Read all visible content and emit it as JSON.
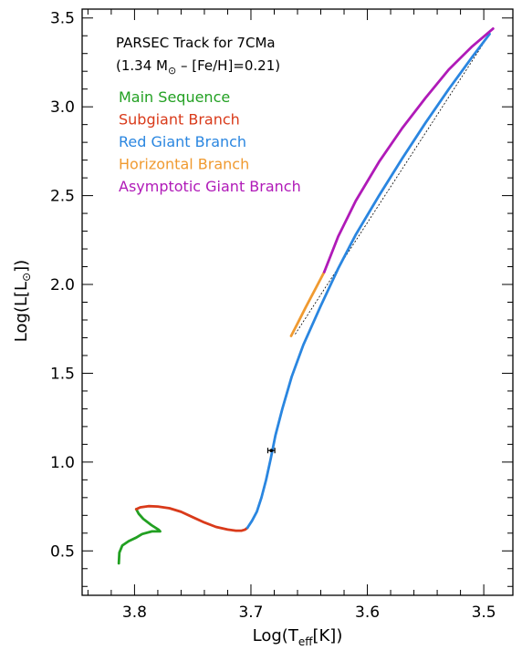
{
  "chart_data": {
    "type": "line",
    "xlabel_parts": {
      "base": "Log(T",
      "sub": "eff",
      "tail": "[K])"
    },
    "ylabel_parts": {
      "base": "Log(L[L",
      "sym": "⊙",
      "tail": "])"
    },
    "xlim": [
      3.845,
      3.475
    ],
    "ylim": [
      0.25,
      3.55
    ],
    "x_ticks": [
      3.8,
      3.7,
      3.6,
      3.5
    ],
    "x_tick_labels": [
      "3.8",
      "3.7",
      "3.6",
      "3.5"
    ],
    "y_ticks": [
      0.5,
      1.0,
      1.5,
      2.0,
      2.5,
      3.0,
      3.5
    ],
    "y_tick_labels": [
      "0.5",
      "1.0",
      "1.5",
      "2.0",
      "2.5",
      "3.0",
      "3.5"
    ],
    "annotation": {
      "line1": "PARSEC Track for 7CMa",
      "line2_a": "(1.34 M",
      "line2_sym": "⊙",
      "line2_b": " – [Fe/H]=0.21)"
    },
    "series": [
      {
        "name": "Main Sequence",
        "color": "#22a022",
        "x": [
          3.8135,
          3.813,
          3.8105,
          3.805,
          3.7985,
          3.7935,
          3.785,
          3.778,
          3.7795,
          3.7855,
          3.7925,
          3.7965,
          3.7985
        ],
        "y": [
          0.43,
          0.49,
          0.53,
          0.555,
          0.575,
          0.595,
          0.61,
          0.61,
          0.62,
          0.645,
          0.68,
          0.71,
          0.735
        ]
      },
      {
        "name": "Subgiant Branch",
        "color": "#d93a1a",
        "x": [
          3.7985,
          3.795,
          3.788,
          3.78,
          3.77,
          3.76,
          3.75,
          3.74,
          3.73,
          3.72,
          3.713,
          3.708,
          3.705,
          3.703
        ],
        "y": [
          0.735,
          0.745,
          0.752,
          0.75,
          0.74,
          0.72,
          0.69,
          0.66,
          0.635,
          0.62,
          0.614,
          0.614,
          0.62,
          0.63
        ]
      },
      {
        "name": "Red Giant Branch",
        "color": "#2a86e0",
        "x": [
          3.703,
          3.699,
          3.695,
          3.691,
          3.687,
          3.683,
          3.679,
          3.673,
          3.665,
          3.655,
          3.64,
          3.625,
          3.61,
          3.59,
          3.57,
          3.55,
          3.53,
          3.51,
          3.495
        ],
        "y": [
          0.63,
          0.67,
          0.72,
          0.8,
          0.9,
          1.02,
          1.15,
          1.3,
          1.48,
          1.66,
          1.88,
          2.09,
          2.28,
          2.5,
          2.71,
          2.91,
          3.1,
          3.28,
          3.41
        ]
      },
      {
        "name": "Horizontal Branch",
        "color": "#f09a30",
        "x": [
          3.6655,
          3.66,
          3.653,
          3.645,
          3.637
        ],
        "y": [
          1.71,
          1.78,
          1.87,
          1.97,
          2.07
        ]
      },
      {
        "name": "Asymptotic Giant Branch",
        "color": "#b01ab8",
        "x": [
          3.637,
          3.625,
          3.61,
          3.59,
          3.57,
          3.55,
          3.53,
          3.51,
          3.492
        ],
        "y": [
          2.07,
          2.27,
          2.47,
          2.69,
          2.88,
          3.05,
          3.21,
          3.34,
          3.44
        ]
      }
    ],
    "dotted_line": {
      "x": [
        3.662,
        3.495
      ],
      "y": [
        1.72,
        3.41
      ]
    },
    "observed_point": {
      "x": 3.6825,
      "y": 1.065,
      "xerr": 0.003,
      "yerr": 0.004
    }
  }
}
